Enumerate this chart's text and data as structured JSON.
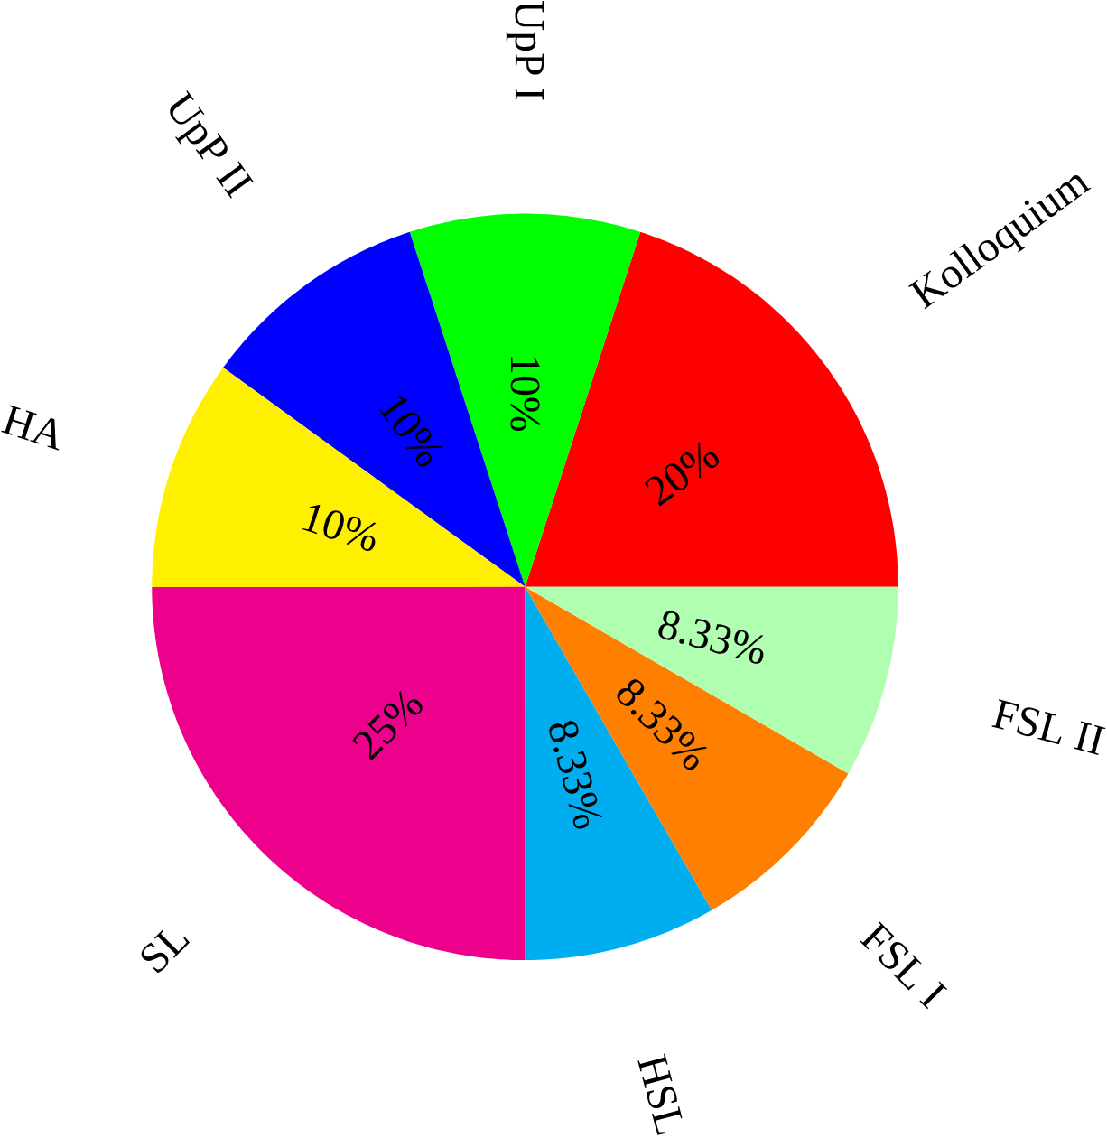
{
  "chart_data": {
    "type": "pie",
    "categories": [
      "Kolloquium",
      "UpP I",
      "UpP II",
      "HA",
      "SL",
      "HSL",
      "FSL I",
      "FSL II"
    ],
    "values": [
      20,
      10,
      10,
      10,
      25,
      8.33,
      8.33,
      8.33
    ],
    "value_labels": [
      "20%",
      "10%",
      "10%",
      "10%",
      "25%",
      "8.33%",
      "8.33%",
      "8.33%"
    ],
    "colors": [
      "#ff0000",
      "#00ff00",
      "#0000ff",
      "#fff000",
      "#ec008c",
      "#00aeef",
      "#ff7f00",
      "#b0ffb0"
    ]
  }
}
